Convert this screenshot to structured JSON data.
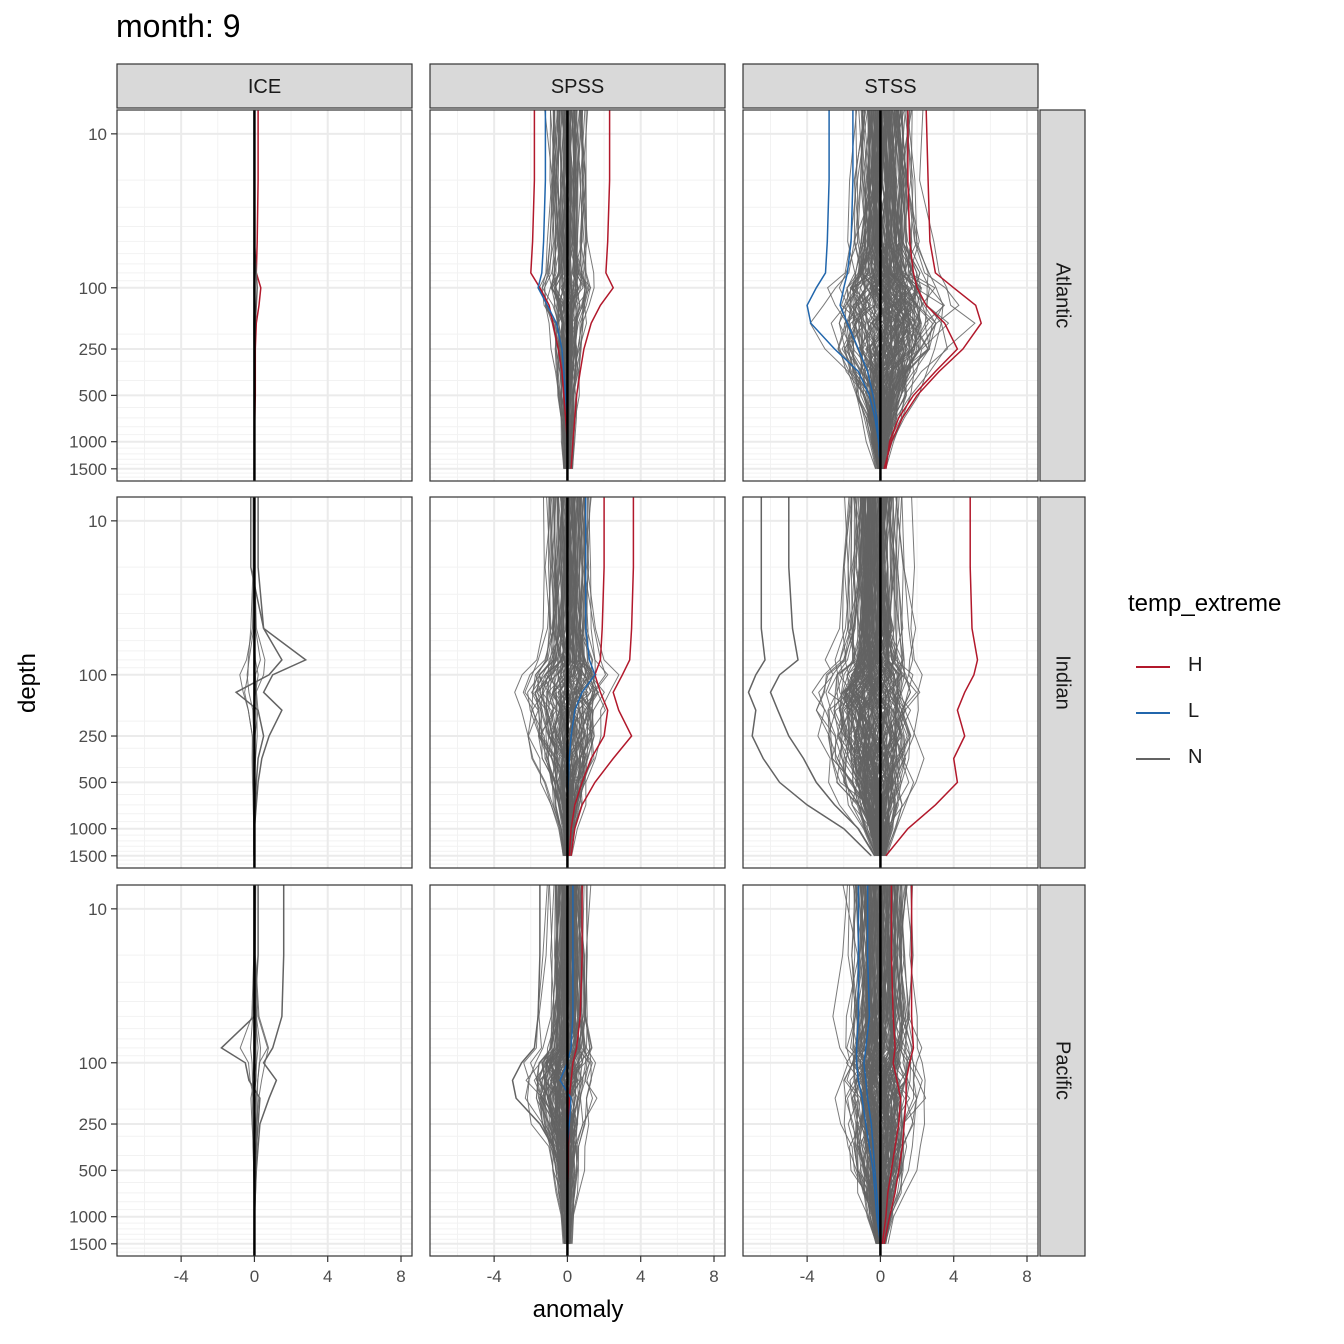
{
  "chart_data": {
    "type": "line",
    "title": "month: 9",
    "xlabel": "anomaly",
    "ylabel": "depth",
    "xlim": [
      -7.5,
      8.6
    ],
    "x_ticks": [
      -4,
      0,
      4,
      8
    ],
    "x_tick_labels": [
      "-4",
      "0",
      "4",
      "8"
    ],
    "y_scale": "log, reversed",
    "ylim": [
      7,
      1800
    ],
    "y_ticks": [
      10,
      100,
      250,
      500,
      1000,
      1500
    ],
    "y_tick_labels": [
      "10",
      "100",
      "250",
      "500",
      "1000",
      "1500"
    ],
    "column_strips": [
      "ICE",
      "SPSS",
      "STSS"
    ],
    "row_strips": [
      "Atlantic",
      "Indian",
      "Pacific"
    ],
    "legend": {
      "title": "temp_extreme",
      "entries": [
        {
          "label": "H",
          "color": "#b2182b"
        },
        {
          "label": "L",
          "color": "#2166ac"
        },
        {
          "label": "N",
          "color": "#636363"
        }
      ]
    },
    "reference_line": {
      "x": 0,
      "color": "#000000"
    },
    "profile_depths": [
      7,
      20,
      50,
      80,
      100,
      130,
      170,
      250,
      350,
      500,
      700,
      1000,
      1500
    ],
    "panels": [
      {
        "row": "Atlantic",
        "col": "ICE",
        "n_profiles": 3,
        "series": [
          {
            "group": "H",
            "x": [
              0.2,
              0.2,
              0.15,
              0.1,
              0.35,
              0.25,
              0.1,
              0.05,
              0.05,
              0.05,
              0.02,
              0.0,
              0.0
            ]
          },
          {
            "group": "N",
            "x": [
              0.0,
              0.0,
              0.0,
              0.1,
              0.15,
              0.1,
              0.05,
              0.0,
              0.0,
              0.0,
              0.0,
              0.0,
              0.0
            ]
          }
        ]
      },
      {
        "row": "Atlantic",
        "col": "SPSS",
        "n_profiles": 80,
        "series": [
          {
            "group": "H",
            "x": [
              2.3,
              2.3,
              2.2,
              2.1,
              2.5,
              1.8,
              1.3,
              0.9,
              0.7,
              0.5,
              0.4,
              0.3,
              0.2
            ]
          },
          {
            "group": "H",
            "x": [
              -1.8,
              -1.8,
              -1.9,
              -2.0,
              -1.5,
              -1.0,
              -0.8,
              -0.5,
              -0.3,
              -0.2,
              -0.1,
              0.0,
              0.0
            ]
          },
          {
            "group": "L",
            "x": [
              -1.2,
              -1.2,
              -1.3,
              -1.4,
              -1.6,
              -1.1,
              -0.6,
              -0.3,
              -0.2,
              -0.1,
              0.0,
              0.0,
              0.0
            ]
          }
        ]
      },
      {
        "row": "Atlantic",
        "col": "STSS",
        "n_profiles": 200,
        "series": [
          {
            "group": "H",
            "x": [
              2.5,
              2.6,
              2.7,
              3.0,
              4.0,
              5.2,
              5.5,
              4.5,
              3.2,
              2.0,
              1.2,
              0.6,
              0.2
            ]
          },
          {
            "group": "H",
            "x": [
              1.5,
              1.5,
              1.6,
              1.8,
              2.0,
              2.5,
              3.5,
              4.2,
              3.0,
              1.8,
              1.0,
              0.5,
              0.3
            ]
          },
          {
            "group": "L",
            "x": [
              -2.8,
              -2.8,
              -2.9,
              -3.0,
              -3.5,
              -4.0,
              -3.8,
              -2.5,
              -1.2,
              -0.6,
              -0.3,
              -0.1,
              0.0
            ]
          },
          {
            "group": "L",
            "x": [
              -1.5,
              -1.5,
              -1.6,
              -1.8,
              -2.0,
              -2.2,
              -1.8,
              -1.2,
              -0.7,
              -0.4,
              -0.2,
              -0.1,
              0.0
            ]
          }
        ]
      },
      {
        "row": "Indian",
        "col": "ICE",
        "n_profiles": 6,
        "series": [
          {
            "group": "N",
            "x": [
              -0.2,
              -0.2,
              0.5,
              1.5,
              0.8,
              -1.0,
              0.2,
              0.5,
              0.2,
              0.1,
              0.05,
              0.0,
              0.0
            ]
          },
          {
            "group": "N",
            "x": [
              0.2,
              0.2,
              0.5,
              2.8,
              1.0,
              0.5,
              1.5,
              0.8,
              0.4,
              0.2,
              0.1,
              0.0,
              0.0
            ]
          }
        ]
      },
      {
        "row": "Indian",
        "col": "SPSS",
        "n_profiles": 100,
        "series": [
          {
            "group": "H",
            "x": [
              3.6,
              3.6,
              3.5,
              3.4,
              3.0,
              2.5,
              2.8,
              3.5,
              2.5,
              1.5,
              0.8,
              0.4,
              0.2
            ]
          },
          {
            "group": "H",
            "x": [
              2.0,
              2.0,
              1.9,
              1.8,
              1.5,
              1.8,
              2.2,
              2.0,
              1.3,
              0.8,
              0.4,
              0.2,
              0.1
            ]
          },
          {
            "group": "L",
            "x": [
              1.0,
              1.0,
              1.0,
              1.2,
              1.5,
              0.8,
              0.4,
              0.2,
              0.1,
              0.05,
              0.0,
              0.0,
              0.0
            ]
          }
        ]
      },
      {
        "row": "Indian",
        "col": "STSS",
        "n_profiles": 200,
        "series": [
          {
            "group": "H",
            "x": [
              4.9,
              4.9,
              5.0,
              5.3,
              5.1,
              4.6,
              4.2,
              4.6,
              4.0,
              4.2,
              3.0,
              1.5,
              0.3
            ]
          },
          {
            "group": "N",
            "x": [
              -6.5,
              -6.5,
              -6.5,
              -6.3,
              -6.8,
              -7.2,
              -6.8,
              -7.0,
              -6.4,
              -5.5,
              -4.0,
              -2.0,
              -0.5
            ]
          },
          {
            "group": "N",
            "x": [
              -5.0,
              -5.0,
              -4.8,
              -4.5,
              -5.5,
              -6.0,
              -5.6,
              -5.0,
              -4.2,
              -3.5,
              -2.5,
              -1.2,
              -0.3
            ]
          }
        ]
      },
      {
        "row": "Pacific",
        "col": "ICE",
        "n_profiles": 8,
        "series": [
          {
            "group": "N",
            "x": [
              1.6,
              1.6,
              1.5,
              1.0,
              0.5,
              1.2,
              0.8,
              0.3,
              0.2,
              0.1,
              0.05,
              0.0,
              0.0
            ]
          },
          {
            "group": "N",
            "x": [
              0.2,
              0.2,
              0.0,
              -1.8,
              -0.5,
              -0.3,
              0.3,
              0.2,
              0.1,
              0.05,
              0.0,
              0.0,
              0.0
            ]
          }
        ]
      },
      {
        "row": "Pacific",
        "col": "SPSS",
        "n_profiles": 120,
        "series": [
          {
            "group": "H",
            "x": [
              0.8,
              0.8,
              0.7,
              0.5,
              0.3,
              0.2,
              0.1,
              0.1,
              0.05,
              0.05,
              0.0,
              0.0,
              0.0
            ]
          },
          {
            "group": "L",
            "x": [
              0.3,
              0.3,
              0.3,
              0.2,
              0.0,
              -0.4,
              0.2,
              0.1,
              0.0,
              0.0,
              0.0,
              0.0,
              0.0
            ]
          },
          {
            "group": "N",
            "x": [
              -1.5,
              -1.5,
              -1.6,
              -1.8,
              -2.5,
              -3.0,
              -2.8,
              -1.5,
              -0.8,
              -0.4,
              -0.2,
              0.0,
              0.0
            ]
          }
        ]
      },
      {
        "row": "Pacific",
        "col": "STSS",
        "n_profiles": 200,
        "series": [
          {
            "group": "H",
            "x": [
              1.7,
              1.7,
              1.7,
              1.8,
              1.6,
              1.4,
              1.4,
              1.3,
              1.2,
              1.0,
              0.8,
              0.5,
              0.2
            ]
          },
          {
            "group": "H",
            "x": [
              0.6,
              0.6,
              0.7,
              0.8,
              0.7,
              0.9,
              1.1,
              1.0,
              0.8,
              0.6,
              0.4,
              0.3,
              0.1
            ]
          },
          {
            "group": "L",
            "x": [
              -1.2,
              -1.2,
              -1.2,
              -1.3,
              -1.3,
              -1.2,
              -1.0,
              -0.8,
              -0.6,
              -0.4,
              -0.3,
              -0.2,
              0.0
            ]
          },
          {
            "group": "L",
            "x": [
              -0.7,
              -0.7,
              -0.6,
              -0.8,
              -0.9,
              -0.8,
              -0.7,
              -0.5,
              -0.4,
              -0.3,
              -0.2,
              -0.1,
              0.0
            ]
          }
        ]
      }
    ]
  }
}
